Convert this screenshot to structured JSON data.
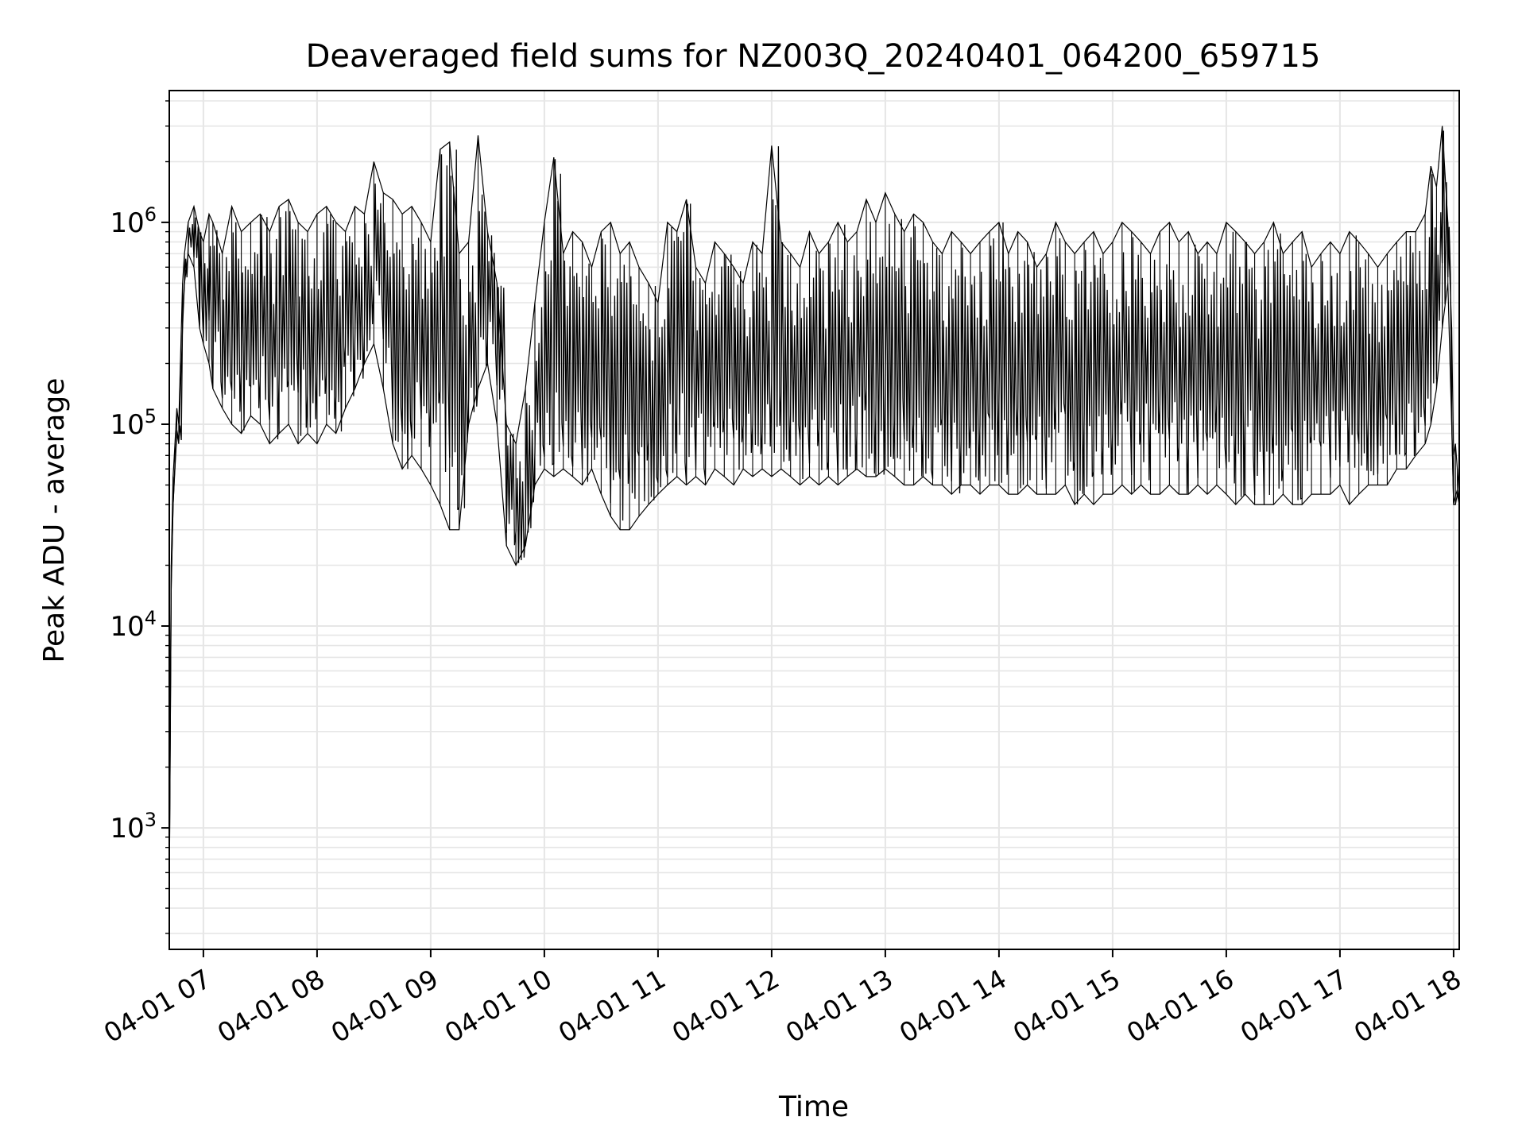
{
  "chart_data": {
    "type": "line",
    "title": "Deaveraged field sums for NZ003Q_20240401_064200_659715",
    "xlabel": "Time",
    "ylabel": "Peak ADU - average",
    "yscale": "log",
    "ylim": [
      250,
      4500000
    ],
    "xlim": [
      "2024-04-01 06:42",
      "2024-04-01 18:03"
    ],
    "grid": true,
    "grid_minor": true,
    "line_color": "#000000",
    "x_ticks": [
      {
        "value": "2024-04-01 07:00",
        "label": "04-01 07"
      },
      {
        "value": "2024-04-01 08:00",
        "label": "04-01 08"
      },
      {
        "value": "2024-04-01 09:00",
        "label": "04-01 09"
      },
      {
        "value": "2024-04-01 10:00",
        "label": "04-01 10"
      },
      {
        "value": "2024-04-01 11:00",
        "label": "04-01 11"
      },
      {
        "value": "2024-04-01 12:00",
        "label": "04-01 12"
      },
      {
        "value": "2024-04-01 13:00",
        "label": "04-01 13"
      },
      {
        "value": "2024-04-01 14:00",
        "label": "04-01 14"
      },
      {
        "value": "2024-04-01 15:00",
        "label": "04-01 15"
      },
      {
        "value": "2024-04-01 16:00",
        "label": "04-01 16"
      },
      {
        "value": "2024-04-01 17:00",
        "label": "04-01 17"
      },
      {
        "value": "2024-04-01 18:00",
        "label": "04-01 18"
      }
    ],
    "y_ticks": [
      {
        "value": 1000,
        "base": "10",
        "exp": "3"
      },
      {
        "value": 10000,
        "base": "10",
        "exp": "4"
      },
      {
        "value": 100000,
        "base": "10",
        "exp": "5"
      },
      {
        "value": 1000000,
        "base": "10",
        "exp": "6"
      }
    ],
    "series": [
      {
        "x": [
          "2024-04-01 06:42",
          "2024-04-01 06:43",
          "2024-04-01 06:44",
          "2024-04-01 06:45",
          "2024-04-01 06:46",
          "2024-04-01 06:47",
          "2024-04-01 06:49",
          "2024-04-01 06:50",
          "2024-04-01 06:52",
          "2024-04-01 06:55",
          "2024-04-01 06:58",
          "2024-04-01 07:00",
          "2024-04-01 07:03",
          "2024-04-01 07:05",
          "2024-04-01 07:10",
          "2024-04-01 07:15",
          "2024-04-01 07:20",
          "2024-04-01 07:25",
          "2024-04-01 07:30",
          "2024-04-01 07:35",
          "2024-04-01 07:40",
          "2024-04-01 07:45",
          "2024-04-01 07:50",
          "2024-04-01 07:55",
          "2024-04-01 08:00",
          "2024-04-01 08:05",
          "2024-04-01 08:10",
          "2024-04-01 08:15",
          "2024-04-01 08:20",
          "2024-04-01 08:25",
          "2024-04-01 08:30",
          "2024-04-01 08:35",
          "2024-04-01 08:40",
          "2024-04-01 08:45",
          "2024-04-01 08:50",
          "2024-04-01 08:55",
          "2024-04-01 09:00",
          "2024-04-01 09:05",
          "2024-04-01 09:10",
          "2024-04-01 09:15",
          "2024-04-01 09:20",
          "2024-04-01 09:25",
          "2024-04-01 09:30",
          "2024-04-01 09:35",
          "2024-04-01 09:40",
          "2024-04-01 09:45",
          "2024-04-01 09:50",
          "2024-04-01 09:55",
          "2024-04-01 10:00",
          "2024-04-01 10:05",
          "2024-04-01 10:10",
          "2024-04-01 10:15",
          "2024-04-01 10:20",
          "2024-04-01 10:25",
          "2024-04-01 10:30",
          "2024-04-01 10:35",
          "2024-04-01 10:40",
          "2024-04-01 10:45",
          "2024-04-01 10:50",
          "2024-04-01 10:55",
          "2024-04-01 11:00",
          "2024-04-01 11:05",
          "2024-04-01 11:10",
          "2024-04-01 11:15",
          "2024-04-01 11:20",
          "2024-04-01 11:25",
          "2024-04-01 11:30",
          "2024-04-01 11:35",
          "2024-04-01 11:40",
          "2024-04-01 11:45",
          "2024-04-01 11:50",
          "2024-04-01 11:55",
          "2024-04-01 12:00",
          "2024-04-01 12:05",
          "2024-04-01 12:10",
          "2024-04-01 12:15",
          "2024-04-01 12:20",
          "2024-04-01 12:25",
          "2024-04-01 12:30",
          "2024-04-01 12:35",
          "2024-04-01 12:40",
          "2024-04-01 12:45",
          "2024-04-01 12:50",
          "2024-04-01 12:55",
          "2024-04-01 13:00",
          "2024-04-01 13:05",
          "2024-04-01 13:10",
          "2024-04-01 13:15",
          "2024-04-01 13:20",
          "2024-04-01 13:25",
          "2024-04-01 13:30",
          "2024-04-01 13:35",
          "2024-04-01 13:40",
          "2024-04-01 13:45",
          "2024-04-01 13:50",
          "2024-04-01 13:55",
          "2024-04-01 14:00",
          "2024-04-01 14:05",
          "2024-04-01 14:10",
          "2024-04-01 14:15",
          "2024-04-01 14:20",
          "2024-04-01 14:25",
          "2024-04-01 14:30",
          "2024-04-01 14:35",
          "2024-04-01 14:40",
          "2024-04-01 14:45",
          "2024-04-01 14:50",
          "2024-04-01 14:55",
          "2024-04-01 15:00",
          "2024-04-01 15:05",
          "2024-04-01 15:10",
          "2024-04-01 15:15",
          "2024-04-01 15:20",
          "2024-04-01 15:25",
          "2024-04-01 15:30",
          "2024-04-01 15:35",
          "2024-04-01 15:40",
          "2024-04-01 15:45",
          "2024-04-01 15:50",
          "2024-04-01 15:55",
          "2024-04-01 16:00",
          "2024-04-01 16:05",
          "2024-04-01 16:10",
          "2024-04-01 16:15",
          "2024-04-01 16:20",
          "2024-04-01 16:25",
          "2024-04-01 16:30",
          "2024-04-01 16:35",
          "2024-04-01 16:40",
          "2024-04-01 16:45",
          "2024-04-01 16:50",
          "2024-04-01 16:55",
          "2024-04-01 17:00",
          "2024-04-01 17:05",
          "2024-04-01 17:10",
          "2024-04-01 17:15",
          "2024-04-01 17:20",
          "2024-04-01 17:25",
          "2024-04-01 17:30",
          "2024-04-01 17:35",
          "2024-04-01 17:40",
          "2024-04-01 17:45",
          "2024-04-01 17:48",
          "2024-04-01 17:51",
          "2024-04-01 17:54",
          "2024-04-01 17:57",
          "2024-04-01 17:59",
          "2024-04-01 18:00",
          "2024-04-01 18:01",
          "2024-04-01 18:02",
          "2024-04-01 18:03"
        ],
        "high": [
          600,
          20000,
          55000,
          80000,
          120000,
          100000,
          500000,
          700000,
          1000000,
          1200000,
          900000,
          800000,
          1100000,
          1000000,
          700000,
          1200000,
          900000,
          1000000,
          1100000,
          900000,
          1200000,
          1300000,
          1000000,
          900000,
          1100000,
          1200000,
          1000000,
          900000,
          1200000,
          1100000,
          2000000,
          1400000,
          1300000,
          1100000,
          1200000,
          1000000,
          800000,
          2300000,
          2500000,
          700000,
          800000,
          2700000,
          900000,
          500000,
          100000,
          80000,
          150000,
          400000,
          1000000,
          2100000,
          700000,
          900000,
          800000,
          600000,
          900000,
          1000000,
          700000,
          800000,
          600000,
          500000,
          400000,
          1000000,
          900000,
          1300000,
          600000,
          500000,
          800000,
          700000,
          600000,
          500000,
          800000,
          700000,
          2400000,
          800000,
          700000,
          600000,
          900000,
          700000,
          800000,
          1000000,
          800000,
          900000,
          1300000,
          1000000,
          1400000,
          1100000,
          900000,
          1100000,
          1000000,
          800000,
          700000,
          900000,
          800000,
          700000,
          800000,
          900000,
          1000000,
          700000,
          900000,
          800000,
          600000,
          700000,
          1000000,
          800000,
          700000,
          800000,
          900000,
          700000,
          800000,
          1000000,
          900000,
          800000,
          700000,
          900000,
          1000000,
          800000,
          900000,
          700000,
          800000,
          700000,
          1000000,
          900000,
          800000,
          700000,
          800000,
          1000000,
          700000,
          800000,
          900000,
          600000,
          700000,
          800000,
          700000,
          900000,
          800000,
          700000,
          600000,
          700000,
          800000,
          900000,
          900000,
          1100000,
          1900000,
          1500000,
          3000000,
          1000000,
          300000,
          70000,
          80000,
          60000,
          45000
        ],
        "low": [
          500,
          15000,
          40000,
          60000,
          90000,
          80000,
          300000,
          500000,
          700000,
          600000,
          300000,
          250000,
          200000,
          150000,
          120000,
          100000,
          90000,
          110000,
          100000,
          80000,
          90000,
          100000,
          80000,
          90000,
          80000,
          100000,
          90000,
          120000,
          150000,
          200000,
          250000,
          150000,
          80000,
          60000,
          70000,
          60000,
          50000,
          40000,
          30000,
          30000,
          100000,
          150000,
          200000,
          100000,
          25000,
          20000,
          25000,
          50000,
          60000,
          55000,
          60000,
          55000,
          50000,
          60000,
          45000,
          35000,
          30000,
          30000,
          35000,
          40000,
          45000,
          50000,
          55000,
          50000,
          55000,
          50000,
          60000,
          55000,
          50000,
          60000,
          55000,
          60000,
          55000,
          60000,
          55000,
          50000,
          55000,
          50000,
          55000,
          50000,
          55000,
          60000,
          55000,
          55000,
          60000,
          55000,
          50000,
          50000,
          55000,
          50000,
          50000,
          45000,
          50000,
          50000,
          45000,
          50000,
          50000,
          45000,
          45000,
          50000,
          45000,
          45000,
          45000,
          50000,
          40000,
          45000,
          40000,
          45000,
          45000,
          50000,
          45000,
          50000,
          45000,
          45000,
          50000,
          45000,
          45000,
          50000,
          45000,
          50000,
          45000,
          40000,
          45000,
          40000,
          40000,
          40000,
          45000,
          40000,
          40000,
          45000,
          45000,
          45000,
          50000,
          40000,
          45000,
          50000,
          50000,
          50000,
          60000,
          60000,
          70000,
          80000,
          100000,
          150000,
          300000,
          500000,
          100000,
          40000,
          40000,
          45000,
          40000
        ]
      }
    ]
  }
}
